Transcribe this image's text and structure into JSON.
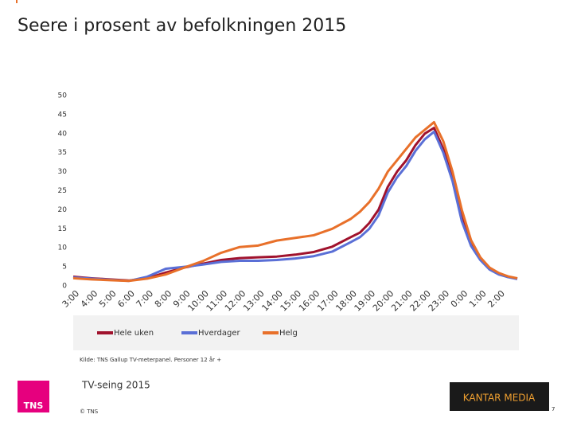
{
  "chart_data": {
    "type": "line",
    "title": "Seere i prosent av befolkningen 2015",
    "x": [
      3,
      4,
      5,
      6,
      7,
      8,
      9,
      10,
      11,
      12,
      13,
      14,
      15,
      16,
      17,
      18,
      18.5,
      19,
      19.5,
      20,
      20.5,
      21,
      21.5,
      22,
      22.5,
      23,
      23.5,
      24,
      24.5,
      25,
      25.5,
      26,
      26.5,
      27
    ],
    "xlim": [
      3,
      27
    ],
    "xticks": [
      {
        "value": 3,
        "label": "3:00"
      },
      {
        "value": 4,
        "label": "4:00"
      },
      {
        "value": 5,
        "label": "5:00"
      },
      {
        "value": 6,
        "label": "6:00"
      },
      {
        "value": 7,
        "label": "7:00"
      },
      {
        "value": 8,
        "label": "8:00"
      },
      {
        "value": 9,
        "label": "9:00"
      },
      {
        "value": 10,
        "label": "10:00"
      },
      {
        "value": 11,
        "label": "11:00"
      },
      {
        "value": 12,
        "label": "12:00"
      },
      {
        "value": 13,
        "label": "13:00"
      },
      {
        "value": 14,
        "label": "14:00"
      },
      {
        "value": 15,
        "label": "15:00"
      },
      {
        "value": 16,
        "label": "16:00"
      },
      {
        "value": 17,
        "label": "17:00"
      },
      {
        "value": 18,
        "label": "18:00"
      },
      {
        "value": 19,
        "label": "19:00"
      },
      {
        "value": 20,
        "label": "20:00"
      },
      {
        "value": 21,
        "label": "21:00"
      },
      {
        "value": 22,
        "label": "22:00"
      },
      {
        "value": 23,
        "label": "23:00"
      },
      {
        "value": 24,
        "label": "0:00"
      },
      {
        "value": 25,
        "label": "1:00"
      },
      {
        "value": 26,
        "label": "2:00"
      }
    ],
    "ylim": [
      0,
      50
    ],
    "yticks": [
      0,
      5,
      10,
      15,
      20,
      25,
      30,
      35,
      40,
      45,
      50
    ],
    "grid": false,
    "series": [
      {
        "name": "Hele uken",
        "color": "#a0122d",
        "values": [
          2.4,
          2.0,
          1.7,
          1.4,
          2.0,
          3.5,
          4.8,
          5.8,
          6.8,
          7.3,
          7.5,
          7.7,
          8.2,
          8.9,
          10.3,
          12.8,
          14,
          16.5,
          20,
          26,
          30,
          33,
          37,
          40,
          41.5,
          36,
          28,
          18,
          11,
          7,
          4.5,
          3.2,
          2.4,
          1.9
        ]
      },
      {
        "name": "Hverdager",
        "color": "#5a6fd6",
        "values": [
          2.2,
          1.9,
          1.6,
          1.3,
          2.4,
          4.5,
          5.0,
          5.6,
          6.3,
          6.6,
          6.6,
          6.8,
          7.2,
          7.8,
          9.0,
          11.5,
          12.8,
          15.0,
          18.5,
          24.5,
          28.5,
          31.5,
          35.5,
          38.5,
          40.5,
          35,
          27.5,
          17,
          10.5,
          6.8,
          4.3,
          3.0,
          2.3,
          1.8
        ]
      },
      {
        "name": "Helg",
        "color": "#e8702a",
        "values": [
          2.0,
          1.7,
          1.5,
          1.3,
          1.9,
          3.0,
          4.8,
          6.5,
          8.7,
          10.2,
          10.6,
          11.9,
          12.6,
          13.3,
          15.0,
          17.6,
          19.5,
          22,
          25.5,
          30,
          33,
          36,
          39,
          41,
          43,
          38,
          30,
          20,
          12,
          7.5,
          4.8,
          3.4,
          2.5,
          2.0
        ]
      }
    ],
    "source": "Kilde: TNS Gallup TV-meterpanel. Personer 12 år +"
  },
  "footer": {
    "subject": "TV-seing 2015",
    "copyright": "© TNS",
    "page": "7",
    "logo_left": "TNS",
    "logo_right": "KANTAR MEDIA"
  }
}
